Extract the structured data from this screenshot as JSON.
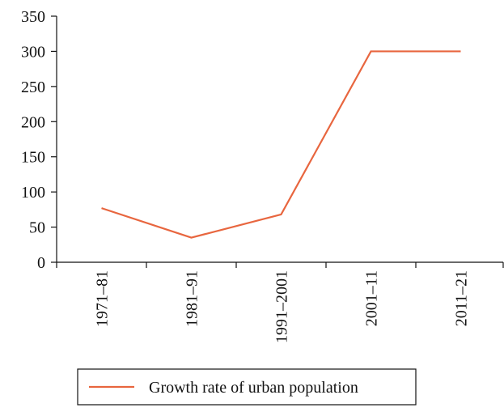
{
  "chart_data": {
    "type": "line",
    "categories": [
      "1971–81",
      "1981–91",
      "1991–2001",
      "2001–11",
      "2011–21"
    ],
    "series": [
      {
        "name": "Growth rate of urban population",
        "color": "#e8663f",
        "values": [
          77,
          35,
          68,
          300,
          300
        ]
      }
    ],
    "ylim": [
      0,
      350
    ],
    "yticks": [
      0,
      50,
      100,
      150,
      200,
      250,
      300,
      350
    ],
    "legend": "bottom",
    "grid": false
  }
}
